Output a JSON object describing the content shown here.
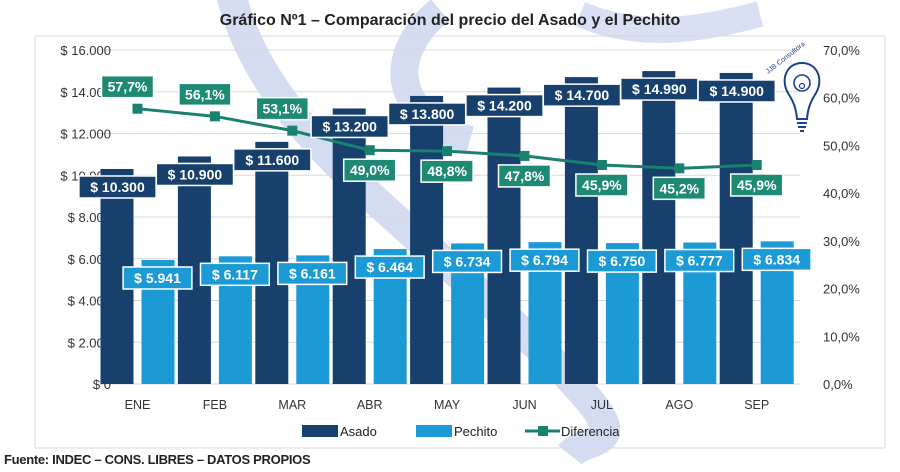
{
  "chart_data": {
    "type": "bar+line",
    "title": "Gráfico Nº1 – Comparación del precio del Asado y el Pechito",
    "categories": [
      "ENE",
      "FEB",
      "MAR",
      "ABR",
      "MAY",
      "JUN",
      "JUL",
      "AGO",
      "SEP"
    ],
    "series": [
      {
        "name": "Asado",
        "type": "bar",
        "axis": "left",
        "color": "#17406d",
        "values": [
          10300,
          10900,
          11600,
          13200,
          13800,
          14200,
          14700,
          14990,
          14900
        ],
        "labels": [
          "$ 10.300",
          "$ 10.900",
          "$ 11.600",
          "$ 13.200",
          "$ 13.800",
          "$ 14.200",
          "$ 14.700",
          "$ 14.990",
          "$ 14.900"
        ]
      },
      {
        "name": "Pechito",
        "type": "bar",
        "axis": "left",
        "color": "#1c9ad6",
        "values": [
          5941,
          6117,
          6161,
          6464,
          6734,
          6794,
          6750,
          6777,
          6834
        ],
        "labels": [
          "$ 5.941",
          "$ 6.117",
          "$ 6.161",
          "$ 6.464",
          "$ 6.734",
          "$ 6.794",
          "$ 6.750",
          "$ 6.777",
          "$ 6.834"
        ]
      },
      {
        "name": "Diferencia",
        "type": "line",
        "axis": "right",
        "color": "#1a8070",
        "values": [
          57.7,
          56.1,
          53.1,
          49.0,
          48.8,
          47.8,
          45.9,
          45.2,
          45.9
        ],
        "labels": [
          "57,7%",
          "56,1%",
          "53,1%",
          "49,0%",
          "48,8%",
          "47,8%",
          "45,9%",
          "45,2%",
          "45,9%"
        ]
      }
    ],
    "y_left": {
      "range": [
        0,
        16000
      ],
      "ticks": [
        "$ 0",
        "$ 2.000",
        "$ 4.000",
        "$ 6.000",
        "$ 8.000",
        "$ 10.000",
        "$ 12.000",
        "$ 14.000",
        "$ 16.000"
      ]
    },
    "y_right": {
      "range": [
        0,
        70
      ],
      "ticks": [
        "0,0%",
        "10,0%",
        "20,0%",
        "30,0%",
        "40,0%",
        "50,0%",
        "60,0%",
        "70,0%"
      ]
    },
    "grid": true,
    "legend_placement": "bottom"
  },
  "source": "Fuente: INDEC – CONS. LIBRES – DATOS PROPIOS",
  "logo_text": "JJB Consultora"
}
